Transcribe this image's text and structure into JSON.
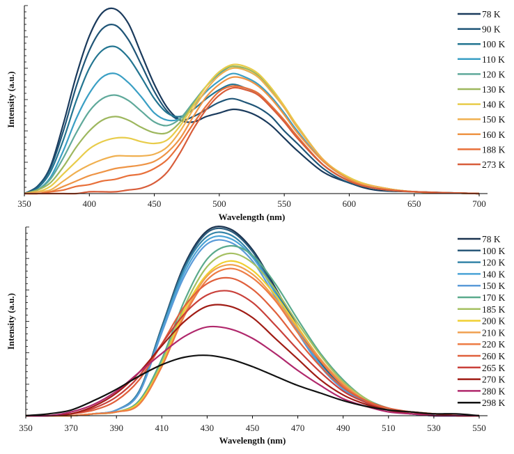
{
  "chart_data": [
    {
      "type": "line",
      "xlabel": "Wavelength (nm)",
      "ylabel": "Intensity (a.u.)",
      "xlim": [
        350,
        700
      ],
      "ylim": [
        0,
        1.05
      ],
      "xticks": [
        350,
        400,
        450,
        500,
        550,
        600,
        650,
        700
      ],
      "grid": false,
      "legend_position": "right",
      "x": [
        350,
        360,
        370,
        380,
        390,
        400,
        410,
        420,
        430,
        440,
        450,
        460,
        470,
        480,
        490,
        500,
        510,
        520,
        530,
        540,
        550,
        560,
        580,
        600,
        620,
        650,
        700
      ],
      "series": [
        {
          "name": "78 K",
          "color": "#1a3a5c",
          "values": [
            0,
            0.04,
            0.15,
            0.39,
            0.66,
            0.88,
            1.01,
            1.03,
            0.95,
            0.78,
            0.61,
            0.48,
            0.41,
            0.4,
            0.43,
            0.45,
            0.47,
            0.46,
            0.43,
            0.38,
            0.31,
            0.24,
            0.12,
            0.06,
            0.02,
            0.01,
            0
          ]
        },
        {
          "name": "90 K",
          "color": "#1f5577",
          "values": [
            0,
            0.04,
            0.14,
            0.35,
            0.6,
            0.8,
            0.92,
            0.94,
            0.86,
            0.72,
            0.57,
            0.46,
            0.41,
            0.43,
            0.47,
            0.51,
            0.53,
            0.51,
            0.48,
            0.43,
            0.35,
            0.28,
            0.14,
            0.06,
            0.03,
            0.01,
            0
          ]
        },
        {
          "name": "100 K",
          "color": "#237591",
          "values": [
            0,
            0.03,
            0.12,
            0.3,
            0.52,
            0.7,
            0.8,
            0.82,
            0.76,
            0.65,
            0.53,
            0.45,
            0.43,
            0.47,
            0.53,
            0.58,
            0.61,
            0.59,
            0.56,
            0.49,
            0.41,
            0.32,
            0.16,
            0.07,
            0.03,
            0.01,
            0
          ]
        },
        {
          "name": "110 K",
          "color": "#3a9fc4",
          "values": [
            0,
            0.02,
            0.09,
            0.24,
            0.42,
            0.56,
            0.65,
            0.67,
            0.62,
            0.54,
            0.45,
            0.41,
            0.42,
            0.49,
            0.57,
            0.63,
            0.67,
            0.65,
            0.61,
            0.54,
            0.45,
            0.35,
            0.18,
            0.08,
            0.03,
            0.01,
            0
          ]
        },
        {
          "name": "120 K",
          "color": "#5fa99a",
          "values": [
            0,
            0.02,
            0.08,
            0.2,
            0.34,
            0.46,
            0.53,
            0.55,
            0.52,
            0.46,
            0.4,
            0.38,
            0.42,
            0.51,
            0.6,
            0.67,
            0.71,
            0.69,
            0.65,
            0.57,
            0.48,
            0.37,
            0.19,
            0.08,
            0.04,
            0.01,
            0
          ]
        },
        {
          "name": "130 K",
          "color": "#9db75e",
          "values": [
            0,
            0.02,
            0.06,
            0.15,
            0.26,
            0.35,
            0.41,
            0.43,
            0.41,
            0.37,
            0.34,
            0.34,
            0.4,
            0.5,
            0.6,
            0.68,
            0.71,
            0.7,
            0.66,
            0.58,
            0.48,
            0.38,
            0.19,
            0.09,
            0.04,
            0.01,
            0
          ]
        },
        {
          "name": "140 K",
          "color": "#e8cc4a",
          "values": [
            0,
            0.01,
            0.04,
            0.11,
            0.18,
            0.25,
            0.29,
            0.31,
            0.31,
            0.29,
            0.28,
            0.3,
            0.38,
            0.49,
            0.6,
            0.68,
            0.72,
            0.71,
            0.67,
            0.59,
            0.49,
            0.38,
            0.19,
            0.09,
            0.04,
            0.01,
            0
          ]
        },
        {
          "name": "150 K",
          "color": "#f0b050",
          "values": [
            0,
            0.01,
            0.02,
            0.07,
            0.12,
            0.16,
            0.19,
            0.21,
            0.21,
            0.21,
            0.22,
            0.26,
            0.35,
            0.47,
            0.58,
            0.66,
            0.7,
            0.69,
            0.65,
            0.57,
            0.48,
            0.37,
            0.19,
            0.08,
            0.04,
            0.01,
            0
          ]
        },
        {
          "name": "160 K",
          "color": "#ee9445",
          "values": [
            0,
            0,
            0.01,
            0.04,
            0.07,
            0.1,
            0.12,
            0.14,
            0.15,
            0.16,
            0.18,
            0.23,
            0.31,
            0.43,
            0.54,
            0.61,
            0.65,
            0.64,
            0.6,
            0.53,
            0.44,
            0.34,
            0.18,
            0.08,
            0.03,
            0.01,
            0
          ]
        },
        {
          "name": "188 K",
          "color": "#e8703a",
          "values": [
            0,
            0,
            0.01,
            0.02,
            0.04,
            0.05,
            0.07,
            0.08,
            0.1,
            0.11,
            0.14,
            0.19,
            0.28,
            0.39,
            0.49,
            0.57,
            0.6,
            0.59,
            0.56,
            0.49,
            0.41,
            0.32,
            0.16,
            0.07,
            0.03,
            0.01,
            0
          ]
        },
        {
          "name": "273 K",
          "color": "#d85d3a",
          "values": [
            0,
            0,
            0,
            0,
            0,
            0.01,
            0.01,
            0.01,
            0.02,
            0.03,
            0.06,
            0.12,
            0.23,
            0.36,
            0.47,
            0.55,
            0.59,
            0.58,
            0.55,
            0.48,
            0.4,
            0.31,
            0.16,
            0.07,
            0.03,
            0.01,
            0
          ]
        }
      ]
    },
    {
      "type": "line",
      "xlabel": "Wavelength (nm)",
      "ylabel": "Intensity (a.u.)",
      "xlim": [
        350,
        550
      ],
      "ylim": [
        0,
        1.0
      ],
      "xticks": [
        350,
        370,
        390,
        410,
        430,
        450,
        470,
        490,
        510,
        530,
        550
      ],
      "grid": false,
      "legend_position": "right",
      "x": [
        350,
        360,
        370,
        380,
        390,
        400,
        410,
        420,
        430,
        440,
        450,
        460,
        470,
        480,
        490,
        500,
        510,
        520,
        530,
        540,
        550
      ],
      "series": [
        {
          "name": "78 K",
          "color": "#1c3450",
          "values": [
            0,
            0,
            0,
            0.01,
            0.03,
            0.13,
            0.47,
            0.8,
            0.98,
            0.99,
            0.88,
            0.68,
            0.47,
            0.28,
            0.15,
            0.07,
            0.03,
            0.01,
            0,
            0,
            0
          ]
        },
        {
          "name": "100 K",
          "color": "#2a5a7a",
          "values": [
            0,
            0,
            0,
            0.01,
            0.03,
            0.13,
            0.47,
            0.79,
            0.97,
            0.98,
            0.87,
            0.67,
            0.47,
            0.28,
            0.15,
            0.07,
            0.03,
            0.01,
            0,
            0,
            0
          ]
        },
        {
          "name": "120 K",
          "color": "#3585a8",
          "values": [
            0,
            0,
            0,
            0.01,
            0.03,
            0.13,
            0.46,
            0.78,
            0.95,
            0.96,
            0.85,
            0.66,
            0.46,
            0.27,
            0.15,
            0.07,
            0.03,
            0.01,
            0,
            0,
            0
          ]
        },
        {
          "name": "140 K",
          "color": "#4aa3d6",
          "values": [
            0,
            0,
            0,
            0.01,
            0.03,
            0.12,
            0.45,
            0.76,
            0.93,
            0.94,
            0.84,
            0.65,
            0.45,
            0.27,
            0.14,
            0.07,
            0.03,
            0.01,
            0,
            0,
            0
          ]
        },
        {
          "name": "150 K",
          "color": "#5b9bd8",
          "values": [
            0,
            0,
            0,
            0.01,
            0.03,
            0.12,
            0.44,
            0.74,
            0.91,
            0.92,
            0.82,
            0.63,
            0.44,
            0.26,
            0.14,
            0.07,
            0.03,
            0.01,
            0,
            0,
            0
          ]
        },
        {
          "name": "170 K",
          "color": "#5aaa8c",
          "values": [
            0,
            0,
            0,
            0.01,
            0.02,
            0.08,
            0.3,
            0.61,
            0.83,
            0.9,
            0.85,
            0.7,
            0.51,
            0.33,
            0.19,
            0.09,
            0.04,
            0.02,
            0.01,
            0,
            0
          ]
        },
        {
          "name": "185 K",
          "color": "#a5c062",
          "values": [
            0,
            0,
            0,
            0.01,
            0.02,
            0.07,
            0.28,
            0.58,
            0.79,
            0.86,
            0.81,
            0.67,
            0.49,
            0.32,
            0.18,
            0.09,
            0.03,
            0.02,
            0.01,
            0,
            0
          ]
        },
        {
          "name": "200 K",
          "color": "#f0cf30",
          "values": [
            0,
            0,
            0,
            0.01,
            0.02,
            0.07,
            0.27,
            0.56,
            0.75,
            0.82,
            0.77,
            0.64,
            0.47,
            0.3,
            0.17,
            0.08,
            0.03,
            0.02,
            0.01,
            0,
            0
          ]
        },
        {
          "name": "210 K",
          "color": "#f0a050",
          "values": [
            0,
            0,
            0,
            0.01,
            0.02,
            0.06,
            0.26,
            0.54,
            0.74,
            0.8,
            0.75,
            0.62,
            0.46,
            0.3,
            0.17,
            0.08,
            0.03,
            0.02,
            0.01,
            0,
            0
          ]
        },
        {
          "name": "220 K",
          "color": "#ee7c45",
          "values": [
            0,
            0,
            0,
            0.01,
            0.02,
            0.06,
            0.26,
            0.53,
            0.72,
            0.78,
            0.73,
            0.61,
            0.44,
            0.29,
            0.16,
            0.08,
            0.03,
            0.02,
            0.01,
            0,
            0
          ]
        },
        {
          "name": "260 K",
          "color": "#e0603c",
          "values": [
            0,
            0,
            0.01,
            0.03,
            0.08,
            0.19,
            0.38,
            0.58,
            0.7,
            0.73,
            0.67,
            0.55,
            0.4,
            0.26,
            0.15,
            0.08,
            0.04,
            0.02,
            0.01,
            0,
            0
          ]
        },
        {
          "name": "265 K",
          "color": "#c9403a",
          "values": [
            0,
            0,
            0.01,
            0.04,
            0.1,
            0.21,
            0.38,
            0.54,
            0.64,
            0.66,
            0.6,
            0.48,
            0.35,
            0.23,
            0.13,
            0.07,
            0.03,
            0.01,
            0.01,
            0,
            0
          ]
        },
        {
          "name": "270 K",
          "color": "#a01c15",
          "values": [
            0,
            0,
            0.01,
            0.05,
            0.12,
            0.23,
            0.37,
            0.5,
            0.58,
            0.58,
            0.52,
            0.41,
            0.3,
            0.19,
            0.11,
            0.06,
            0.03,
            0.01,
            0.01,
            0,
            0
          ]
        },
        {
          "name": "280 K",
          "color": "#b0286c",
          "values": [
            0,
            0,
            0.02,
            0.06,
            0.13,
            0.23,
            0.33,
            0.42,
            0.47,
            0.46,
            0.41,
            0.33,
            0.24,
            0.16,
            0.09,
            0.05,
            0.02,
            0.01,
            0,
            0,
            0
          ]
        },
        {
          "name": "298 K",
          "color": "#111111",
          "values": [
            0,
            0.01,
            0.03,
            0.08,
            0.14,
            0.21,
            0.27,
            0.31,
            0.32,
            0.3,
            0.26,
            0.21,
            0.16,
            0.12,
            0.08,
            0.05,
            0.03,
            0.02,
            0.01,
            0.01,
            0
          ]
        }
      ]
    }
  ]
}
